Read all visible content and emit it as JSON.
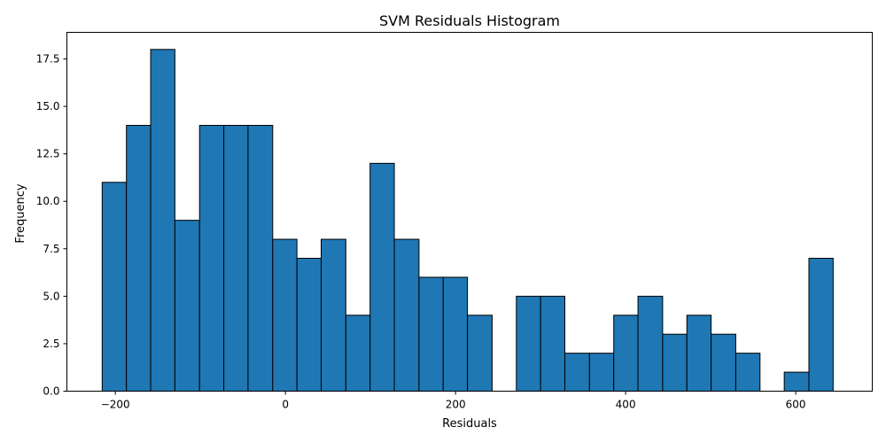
{
  "chart_data": {
    "type": "bar",
    "subtype": "histogram",
    "title": "SVM Residuals Histogram",
    "xlabel": "Residuals",
    "ylabel": "Frequency",
    "xlim": [
      -257,
      690
    ],
    "ylim": [
      0,
      18.9
    ],
    "grid": false,
    "colors": {
      "bar": "#1f77b4",
      "edge": "#000000"
    },
    "bins": [
      {
        "x0": -215.5,
        "x1": -187.0,
        "value": 11
      },
      {
        "x0": -187.0,
        "x1": -158.5,
        "value": 14
      },
      {
        "x0": -158.5,
        "x1": -130.0,
        "value": 18
      },
      {
        "x0": -130.0,
        "x1": -101.0,
        "value": 9
      },
      {
        "x0": -101.0,
        "x1": -72.5,
        "value": 14
      },
      {
        "x0": -72.5,
        "x1": -44.0,
        "value": 14
      },
      {
        "x0": -44.0,
        "x1": -15.0,
        "value": 14
      },
      {
        "x0": -15.0,
        "x1": 13.5,
        "value": 8
      },
      {
        "x0": 13.5,
        "x1": 42.0,
        "value": 7
      },
      {
        "x0": 42.0,
        "x1": 71.0,
        "value": 8
      },
      {
        "x0": 71.0,
        "x1": 99.5,
        "value": 4
      },
      {
        "x0": 99.5,
        "x1": 128.0,
        "value": 12
      },
      {
        "x0": 128.0,
        "x1": 157.0,
        "value": 8
      },
      {
        "x0": 157.0,
        "x1": 185.5,
        "value": 6
      },
      {
        "x0": 185.5,
        "x1": 214.0,
        "value": 6
      },
      {
        "x0": 214.0,
        "x1": 243.0,
        "value": 4
      },
      {
        "x0": 243.0,
        "x1": 271.5,
        "value": 0
      },
      {
        "x0": 271.5,
        "x1": 300.0,
        "value": 5
      },
      {
        "x0": 300.0,
        "x1": 328.5,
        "value": 5
      },
      {
        "x0": 328.5,
        "x1": 357.5,
        "value": 2
      },
      {
        "x0": 357.5,
        "x1": 386.0,
        "value": 2
      },
      {
        "x0": 386.0,
        "x1": 414.5,
        "value": 4
      },
      {
        "x0": 414.5,
        "x1": 443.5,
        "value": 5
      },
      {
        "x0": 443.5,
        "x1": 472.0,
        "value": 3
      },
      {
        "x0": 472.0,
        "x1": 500.5,
        "value": 4
      },
      {
        "x0": 500.5,
        "x1": 529.5,
        "value": 3
      },
      {
        "x0": 529.5,
        "x1": 558.0,
        "value": 2
      },
      {
        "x0": 558.0,
        "x1": 586.5,
        "value": 0
      },
      {
        "x0": 586.5,
        "x1": 615.5,
        "value": 1
      },
      {
        "x0": 615.5,
        "x1": 644.0,
        "value": 7
      }
    ],
    "x_ticks": [
      {
        "value": -200,
        "label": "−200"
      },
      {
        "value": 0,
        "label": "0"
      },
      {
        "value": 200,
        "label": "200"
      },
      {
        "value": 400,
        "label": "400"
      },
      {
        "value": 600,
        "label": "600"
      }
    ],
    "y_ticks": [
      {
        "value": 0,
        "label": "0.0"
      },
      {
        "value": 2.5,
        "label": "2.5"
      },
      {
        "value": 5,
        "label": "5.0"
      },
      {
        "value": 7.5,
        "label": "7.5"
      },
      {
        "value": 10,
        "label": "10.0"
      },
      {
        "value": 12.5,
        "label": "12.5"
      },
      {
        "value": 15,
        "label": "15.0"
      },
      {
        "value": 17.5,
        "label": "17.5"
      }
    ]
  }
}
